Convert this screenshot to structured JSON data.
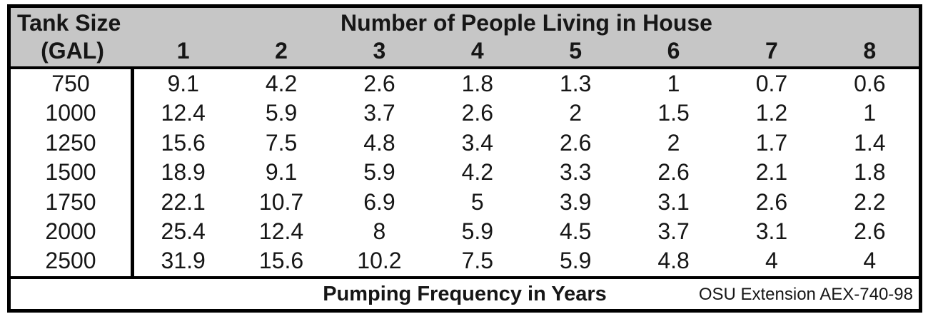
{
  "header": {
    "row_label_line1": "Tank Size",
    "row_label_line2": "(GAL)",
    "group_title": "Number of People Living in House"
  },
  "footer": {
    "caption": "Pumping Frequency in Years",
    "source": "OSU Extension AEX-740-98"
  },
  "colors": {
    "header_bg": "#c6c6c6",
    "border": "#000000",
    "background": "#ffffff",
    "text": "#161616"
  },
  "chart_data": {
    "type": "table",
    "title": "Pumping Frequency in Years",
    "row_axis_label": "Tank Size (GAL)",
    "column_axis_label": "Number of People Living in House",
    "columns": [
      "1",
      "2",
      "3",
      "4",
      "5",
      "6",
      "7",
      "8"
    ],
    "rows": [
      "750",
      "1000",
      "1250",
      "1500",
      "1750",
      "2000",
      "2500"
    ],
    "values": [
      [
        9.1,
        4.2,
        2.6,
        1.8,
        1.3,
        1,
        0.7,
        0.6
      ],
      [
        12.4,
        5.9,
        3.7,
        2.6,
        2,
        1.5,
        1.2,
        1
      ],
      [
        15.6,
        7.5,
        4.8,
        3.4,
        2.6,
        2,
        1.7,
        1.4
      ],
      [
        18.9,
        9.1,
        5.9,
        4.2,
        3.3,
        2.6,
        2.1,
        1.8
      ],
      [
        22.1,
        10.7,
        6.9,
        5,
        3.9,
        3.1,
        2.6,
        2.2
      ],
      [
        25.4,
        12.4,
        8,
        5.9,
        4.5,
        3.7,
        3.1,
        2.6
      ],
      [
        31.9,
        15.6,
        10.2,
        7.5,
        5.9,
        4.8,
        4,
        4
      ]
    ],
    "units": "years",
    "source": "OSU Extension AEX-740-98"
  }
}
